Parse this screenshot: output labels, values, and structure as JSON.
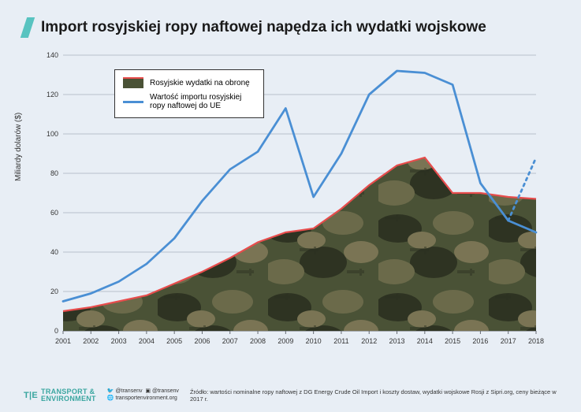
{
  "colors": {
    "page_bg": "#e8eef5",
    "title_text": "#1a1a1a",
    "accent_slash": "#58c3c0",
    "area_stroke": "#e74c4c",
    "area_fill_base": "#4a5236",
    "line_color": "#4a8fd4",
    "grid": "#b7c0cc",
    "axis": "#666b73",
    "tick_text": "#333333",
    "brand": "#3aa6a0",
    "legend_border": "#333333",
    "legend_bg": "#ffffff"
  },
  "title": "Import rosyjskiej ropy naftowej napędza ich wydatki wojskowe",
  "title_fontsize": 19,
  "title_fontweight": 700,
  "ylabel": "Miliardy dolarów ($)",
  "ylabel_fontsize": 10,
  "chart": {
    "type": "line+area",
    "xlim": [
      2001,
      2018
    ],
    "ylim": [
      0,
      140
    ],
    "ytick_step": 20,
    "x_categories": [
      "2001",
      "2002",
      "2003",
      "2004",
      "2005",
      "2006",
      "2007",
      "2008",
      "2009",
      "2010",
      "2011",
      "2012",
      "2013",
      "2014",
      "2015",
      "2016",
      "2017",
      "2018"
    ],
    "grid_on": true,
    "line_width": 2.8,
    "area_stroke_width": 2.2,
    "dotted_segment_from_index": 16,
    "series": {
      "defense": {
        "label": "Rosyjskie wydatki na obronę",
        "values": [
          10,
          12,
          15,
          18,
          24,
          30,
          37,
          45,
          50,
          52,
          62,
          74,
          84,
          88,
          70,
          70,
          68,
          67
        ]
      },
      "oil_import": {
        "label": "Wartość importu rosyjskiej ropy naftowej do UE",
        "values": [
          15,
          19,
          25,
          34,
          47,
          66,
          82,
          91,
          113,
          68,
          90,
          120,
          132,
          131,
          125,
          75,
          56,
          50
        ],
        "values_extra": [
          88
        ]
      }
    }
  },
  "legend": {
    "items": [
      {
        "key": "defense",
        "label": "Rosyjskie wydatki na obronę"
      },
      {
        "key": "oil_import",
        "label": "Wartość importu rosyjskiej ropy naftowej do UE"
      }
    ]
  },
  "footer": {
    "brand_line1": "TRANSPORT &",
    "brand_line2": "ENVIRONMENT",
    "brand_prefix": "T|E",
    "twitter": "@transenv",
    "facebook": "@transenv",
    "site": "transportenvironment.org",
    "source": "Źródło: wartości nominalne ropy naftowej z DG Energy Crude Oil Import i koszty dostaw, wydatki wojskowe Rosji z Sipri.org, ceny bieżące w 2017 r."
  }
}
